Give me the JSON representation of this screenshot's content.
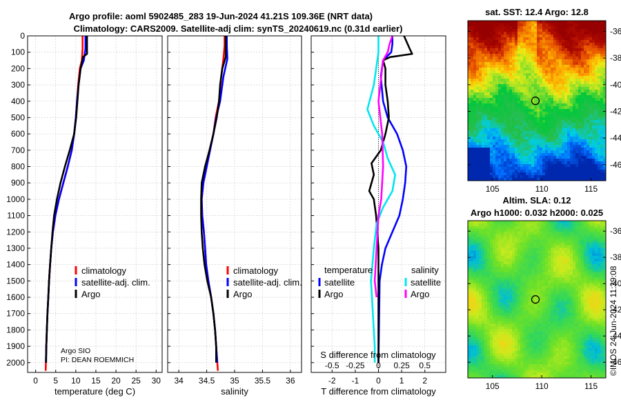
{
  "titles": {
    "line1": "Argo profile: aoml 5902485_283 19-Jun-2024 41.21S 109.36E (NRT data)",
    "line2": "Climatology: CARS2009. Satellite-adj clim: synTS_20240619.nc (0.31d earlier)"
  },
  "credit": {
    "line1": "Argo SIO",
    "line2": "PI: DEAN ROEMMICH"
  },
  "watermark": "©IMOS 24-Jun-2024 11:39:08",
  "colors": {
    "climatology": "#ff0000",
    "satellite": "#0000ff",
    "argo": "#000000",
    "cyan": "#00e5ee",
    "magenta": "#ff00ff",
    "grid": "#c8c8c8"
  },
  "chart_data": [
    {
      "type": "line",
      "id": "temperature",
      "xlabel": "temperature (deg C)",
      "xlim": [
        -2,
        31.5
      ],
      "xticks": [
        0,
        5,
        10,
        15,
        20,
        25,
        30
      ],
      "ylim": [
        2060,
        0
      ],
      "yticks": [
        0,
        100,
        200,
        300,
        400,
        500,
        600,
        700,
        800,
        900,
        1000,
        1100,
        1200,
        1300,
        1400,
        1500,
        1600,
        1700,
        1800,
        1900,
        2000
      ],
      "legend": {
        "position": "lower-right",
        "entries": [
          "climatology",
          "satellite-adj. clim.",
          "Argo"
        ]
      },
      "series": [
        {
          "name": "climatology",
          "color": "#ff0000",
          "points": [
            [
              11.7,
              0
            ],
            [
              11.7,
              80
            ],
            [
              11.5,
              150
            ],
            [
              11.0,
              200
            ],
            [
              10.6,
              300
            ],
            [
              10.3,
              400
            ],
            [
              10.0,
              500
            ],
            [
              9.6,
              600
            ],
            [
              9.0,
              700
            ],
            [
              8.0,
              800
            ],
            [
              6.9,
              900
            ],
            [
              5.8,
              1000
            ],
            [
              4.9,
              1100
            ],
            [
              4.3,
              1200
            ],
            [
              3.9,
              1300
            ],
            [
              3.6,
              1400
            ],
            [
              3.35,
              1500
            ],
            [
              3.15,
              1600
            ],
            [
              2.95,
              1700
            ],
            [
              2.8,
              1800
            ],
            [
              2.65,
              1900
            ],
            [
              2.55,
              2000
            ],
            [
              2.5,
              2050
            ]
          ]
        },
        {
          "name": "satellite-adj. clim.",
          "color": "#0000ff",
          "points": [
            [
              12.4,
              0
            ],
            [
              12.4,
              80
            ],
            [
              12.0,
              150
            ],
            [
              11.2,
              200
            ],
            [
              10.7,
              300
            ],
            [
              10.3,
              400
            ],
            [
              10.0,
              500
            ],
            [
              9.6,
              600
            ],
            [
              9.0,
              700
            ],
            [
              8.0,
              800
            ],
            [
              6.9,
              900
            ],
            [
              5.8,
              1000
            ],
            [
              4.9,
              1100
            ],
            [
              4.3,
              1200
            ],
            [
              3.9,
              1300
            ],
            [
              3.6,
              1400
            ],
            [
              3.35,
              1500
            ],
            [
              3.15,
              1600
            ],
            [
              2.95,
              1700
            ],
            [
              2.8,
              1800
            ],
            [
              2.65,
              1900
            ],
            [
              2.55,
              2000
            ]
          ]
        },
        {
          "name": "Argo",
          "color": "#000000",
          "points": [
            [
              12.8,
              0
            ],
            [
              12.8,
              110
            ],
            [
              11.8,
              130
            ],
            [
              11.2,
              200
            ],
            [
              10.7,
              300
            ],
            [
              10.4,
              400
            ],
            [
              10.1,
              500
            ],
            [
              9.6,
              600
            ],
            [
              8.5,
              700
            ],
            [
              7.3,
              800
            ],
            [
              6.2,
              900
            ],
            [
              5.3,
              1000
            ],
            [
              4.6,
              1100
            ],
            [
              4.2,
              1200
            ],
            [
              3.9,
              1300
            ],
            [
              3.6,
              1400
            ],
            [
              3.35,
              1500
            ],
            [
              3.15,
              1600
            ],
            [
              2.95,
              1700
            ],
            [
              2.8,
              1800
            ],
            [
              2.65,
              1900
            ],
            [
              2.6,
              2000
            ]
          ]
        }
      ]
    },
    {
      "type": "line",
      "id": "salinity",
      "xlabel": "salinity",
      "xlim": [
        33.8,
        36.2
      ],
      "xticks": [
        34,
        34.5,
        35,
        35.5,
        36
      ],
      "ylim": [
        2060,
        0
      ],
      "legend": {
        "position": "lower-right",
        "entries": [
          "climatology",
          "satellite-adj. clim.",
          "Argo"
        ]
      },
      "series": [
        {
          "name": "climatology",
          "color": "#ff0000",
          "points": [
            [
              34.82,
              0
            ],
            [
              34.82,
              60
            ],
            [
              34.8,
              140
            ],
            [
              34.76,
              250
            ],
            [
              34.72,
              400
            ],
            [
              34.66,
              500
            ],
            [
              34.62,
              600
            ],
            [
              34.56,
              700
            ],
            [
              34.5,
              800
            ],
            [
              34.44,
              900
            ],
            [
              34.41,
              1000
            ],
            [
              34.42,
              1100
            ],
            [
              34.45,
              1200
            ],
            [
              34.47,
              1300
            ],
            [
              34.49,
              1400
            ],
            [
              34.53,
              1500
            ],
            [
              34.58,
              1600
            ],
            [
              34.62,
              1700
            ],
            [
              34.65,
              1800
            ],
            [
              34.67,
              1900
            ],
            [
              34.69,
              2000
            ],
            [
              34.7,
              2050
            ]
          ]
        },
        {
          "name": "satellite-adj. clim.",
          "color": "#0000ff",
          "points": [
            [
              34.86,
              0
            ],
            [
              34.86,
              60
            ],
            [
              34.87,
              140
            ],
            [
              34.8,
              250
            ],
            [
              34.74,
              400
            ],
            [
              34.67,
              500
            ],
            [
              34.62,
              600
            ],
            [
              34.56,
              700
            ],
            [
              34.5,
              800
            ],
            [
              34.44,
              900
            ],
            [
              34.41,
              1000
            ],
            [
              34.42,
              1100
            ],
            [
              34.45,
              1200
            ],
            [
              34.47,
              1300
            ],
            [
              34.49,
              1400
            ],
            [
              34.53,
              1500
            ],
            [
              34.58,
              1600
            ],
            [
              34.62,
              1700
            ],
            [
              34.65,
              1800
            ],
            [
              34.67,
              1900
            ],
            [
              34.69,
              2000
            ]
          ]
        },
        {
          "name": "Argo",
          "color": "#000000",
          "points": [
            [
              34.84,
              0
            ],
            [
              34.84,
              130
            ],
            [
              34.78,
              200
            ],
            [
              34.74,
              300
            ],
            [
              34.72,
              400
            ],
            [
              34.68,
              500
            ],
            [
              34.62,
              600
            ],
            [
              34.55,
              700
            ],
            [
              34.47,
              800
            ],
            [
              34.41,
              900
            ],
            [
              34.4,
              1000
            ],
            [
              34.4,
              1100
            ],
            [
              34.41,
              1200
            ],
            [
              34.43,
              1300
            ],
            [
              34.46,
              1400
            ],
            [
              34.51,
              1500
            ],
            [
              34.58,
              1600
            ],
            [
              34.62,
              1700
            ],
            [
              34.65,
              1800
            ],
            [
              34.67,
              1900
            ],
            [
              34.67,
              2000
            ]
          ]
        }
      ]
    },
    {
      "type": "line",
      "id": "difference",
      "xlabel": "T difference from climatology",
      "xlabel_top": "S difference from climatology",
      "xlim": [
        -2.9,
        2.9
      ],
      "xticks": [
        -2,
        -1,
        0,
        1,
        2
      ],
      "s_ticks": [
        "-0.5",
        "-0.25",
        "0",
        "0.25",
        "0.5"
      ],
      "ylim": [
        2060,
        0
      ],
      "legend": {
        "temperature_title": "temperature",
        "salinity_title": "salinity",
        "entries": [
          "satellite",
          "Argo",
          "satellite",
          "Argo"
        ]
      },
      "series": [
        {
          "name": "temperature satellite",
          "color": "#0000ff",
          "points": [
            [
              0.6,
              0
            ],
            [
              0.6,
              50
            ],
            [
              0.55,
              100
            ],
            [
              0.2,
              150
            ],
            [
              0.1,
              250
            ],
            [
              0.2,
              400
            ],
            [
              0.4,
              500
            ],
            [
              0.8,
              600
            ],
            [
              1.05,
              700
            ],
            [
              1.2,
              800
            ],
            [
              1.15,
              900
            ],
            [
              1.05,
              1000
            ],
            [
              0.9,
              1100
            ],
            [
              0.6,
              1200
            ],
            [
              0.3,
              1300
            ],
            [
              0.15,
              1400
            ],
            [
              0.05,
              1500
            ],
            [
              0,
              2000
            ]
          ]
        },
        {
          "name": "temperature Argo",
          "color": "#000000",
          "points": [
            [
              1.1,
              0
            ],
            [
              1.35,
              80
            ],
            [
              1.45,
              110
            ],
            [
              0.5,
              130
            ],
            [
              0.2,
              150
            ],
            [
              0.3,
              200
            ],
            [
              0.3,
              300
            ],
            [
              0.4,
              400
            ],
            [
              0.45,
              500
            ],
            [
              0.3,
              600
            ],
            [
              0.1,
              700
            ],
            [
              -0.3,
              780
            ],
            [
              -0.2,
              850
            ],
            [
              -0.4,
              950
            ],
            [
              -0.2,
              1000
            ],
            [
              -0.1,
              1100
            ],
            [
              -0.05,
              1200
            ],
            [
              0,
              1300
            ],
            [
              0,
              2000
            ]
          ]
        },
        {
          "name": "salinity satellite",
          "color": "#00e5ee",
          "points": [
            [
              0,
              0
            ],
            [
              0,
              100
            ],
            [
              -0.05,
              300
            ],
            [
              -0.12,
              450
            ],
            [
              -0.05,
              550
            ],
            [
              0.05,
              650
            ],
            [
              0.1,
              750
            ],
            [
              0.18,
              850
            ],
            [
              0.15,
              950
            ],
            [
              0.05,
              1050
            ],
            [
              -0.02,
              1150
            ],
            [
              -0.05,
              1300
            ],
            [
              -0.08,
              1500
            ],
            [
              -0.06,
              1700
            ],
            [
              -0.04,
              1900
            ],
            [
              -0.04,
              2000
            ]
          ]
        },
        {
          "name": "salinity Argo",
          "color": "#ff00ff",
          "points": [
            [
              0.15,
              0
            ],
            [
              0.12,
              50
            ],
            [
              0.1,
              100
            ],
            [
              0.05,
              150
            ],
            [
              0.03,
              250
            ],
            [
              0.0,
              400
            ],
            [
              0.04,
              600
            ],
            [
              0.05,
              800
            ],
            [
              0.03,
              1000
            ],
            [
              0,
              1100
            ],
            [
              -0.02,
              1300
            ],
            [
              -0.04,
              1500
            ],
            [
              -0.02,
              1600
            ]
          ]
        }
      ]
    },
    {
      "type": "heatmap",
      "id": "sst-map",
      "title": "sat. SST: 12.4 Argo: 12.8",
      "xlim": [
        102.5,
        116.5
      ],
      "ylim": [
        -47.2,
        -35.2
      ],
      "xticks": [
        105,
        110,
        115
      ],
      "yticks": [
        -36,
        -38,
        -40,
        -42,
        -44,
        -46
      ],
      "marker": {
        "lon": 109.36,
        "lat": -41.21
      }
    },
    {
      "type": "heatmap",
      "id": "sla-map",
      "title": "Altim. SLA: 0.12",
      "subtitle": "Argo h1000: 0.032 h2000: 0.025",
      "xlim": [
        102.5,
        116.5
      ],
      "ylim": [
        -47.2,
        -35.2
      ],
      "xticks": [
        105,
        110,
        115
      ],
      "yticks": [
        -36,
        -38,
        -40,
        -42,
        -44,
        -46
      ],
      "marker": {
        "lon": 109.36,
        "lat": -41.21
      }
    }
  ]
}
